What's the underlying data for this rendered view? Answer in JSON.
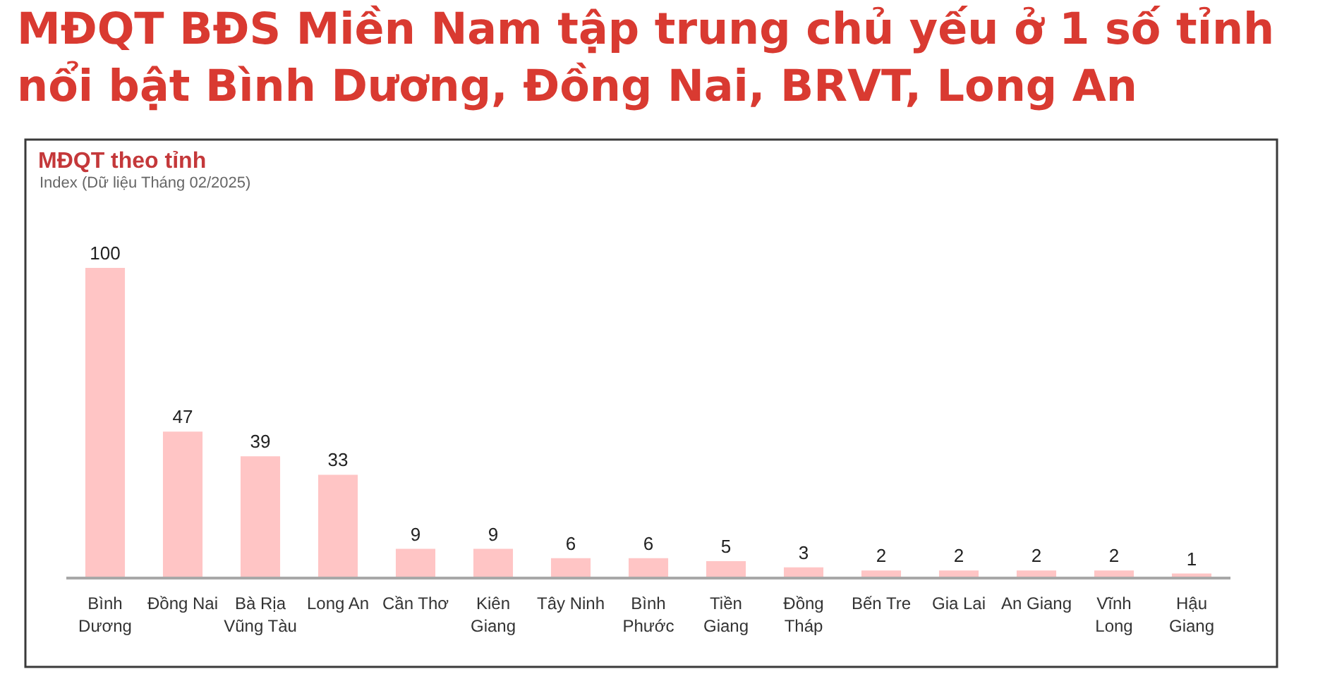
{
  "chart_data": {
    "type": "bar",
    "title": "MĐQT BĐS Miền Nam tập trung chủ yếu ở 1 số tỉnh\nnổi bật Bình Dương, Đồng Nai, BRVT, Long An",
    "subtitle": "MĐQT theo tỉnh",
    "annotations": [
      "Index (Dữ liệu Tháng 02/2025)"
    ],
    "categories": [
      "Bình\nDương",
      "Đồng Nai",
      "Bà Rịa\nVũng Tàu",
      "Long An",
      "Cần Thơ",
      "Kiên\nGiang",
      "Tây Ninh",
      "Bình\nPhước",
      "Tiền\nGiang",
      "Đồng\nTháp",
      "Bến Tre",
      "Gia Lai",
      "An Giang",
      "Vĩnh\nLong",
      "Hậu\nGiang"
    ],
    "values": [
      100,
      47,
      39,
      33,
      9,
      9,
      6,
      6,
      5,
      3,
      2,
      2,
      2,
      2,
      1
    ],
    "color": "#ffc5c5",
    "data_labels": true,
    "tick_labels": "x"
  }
}
